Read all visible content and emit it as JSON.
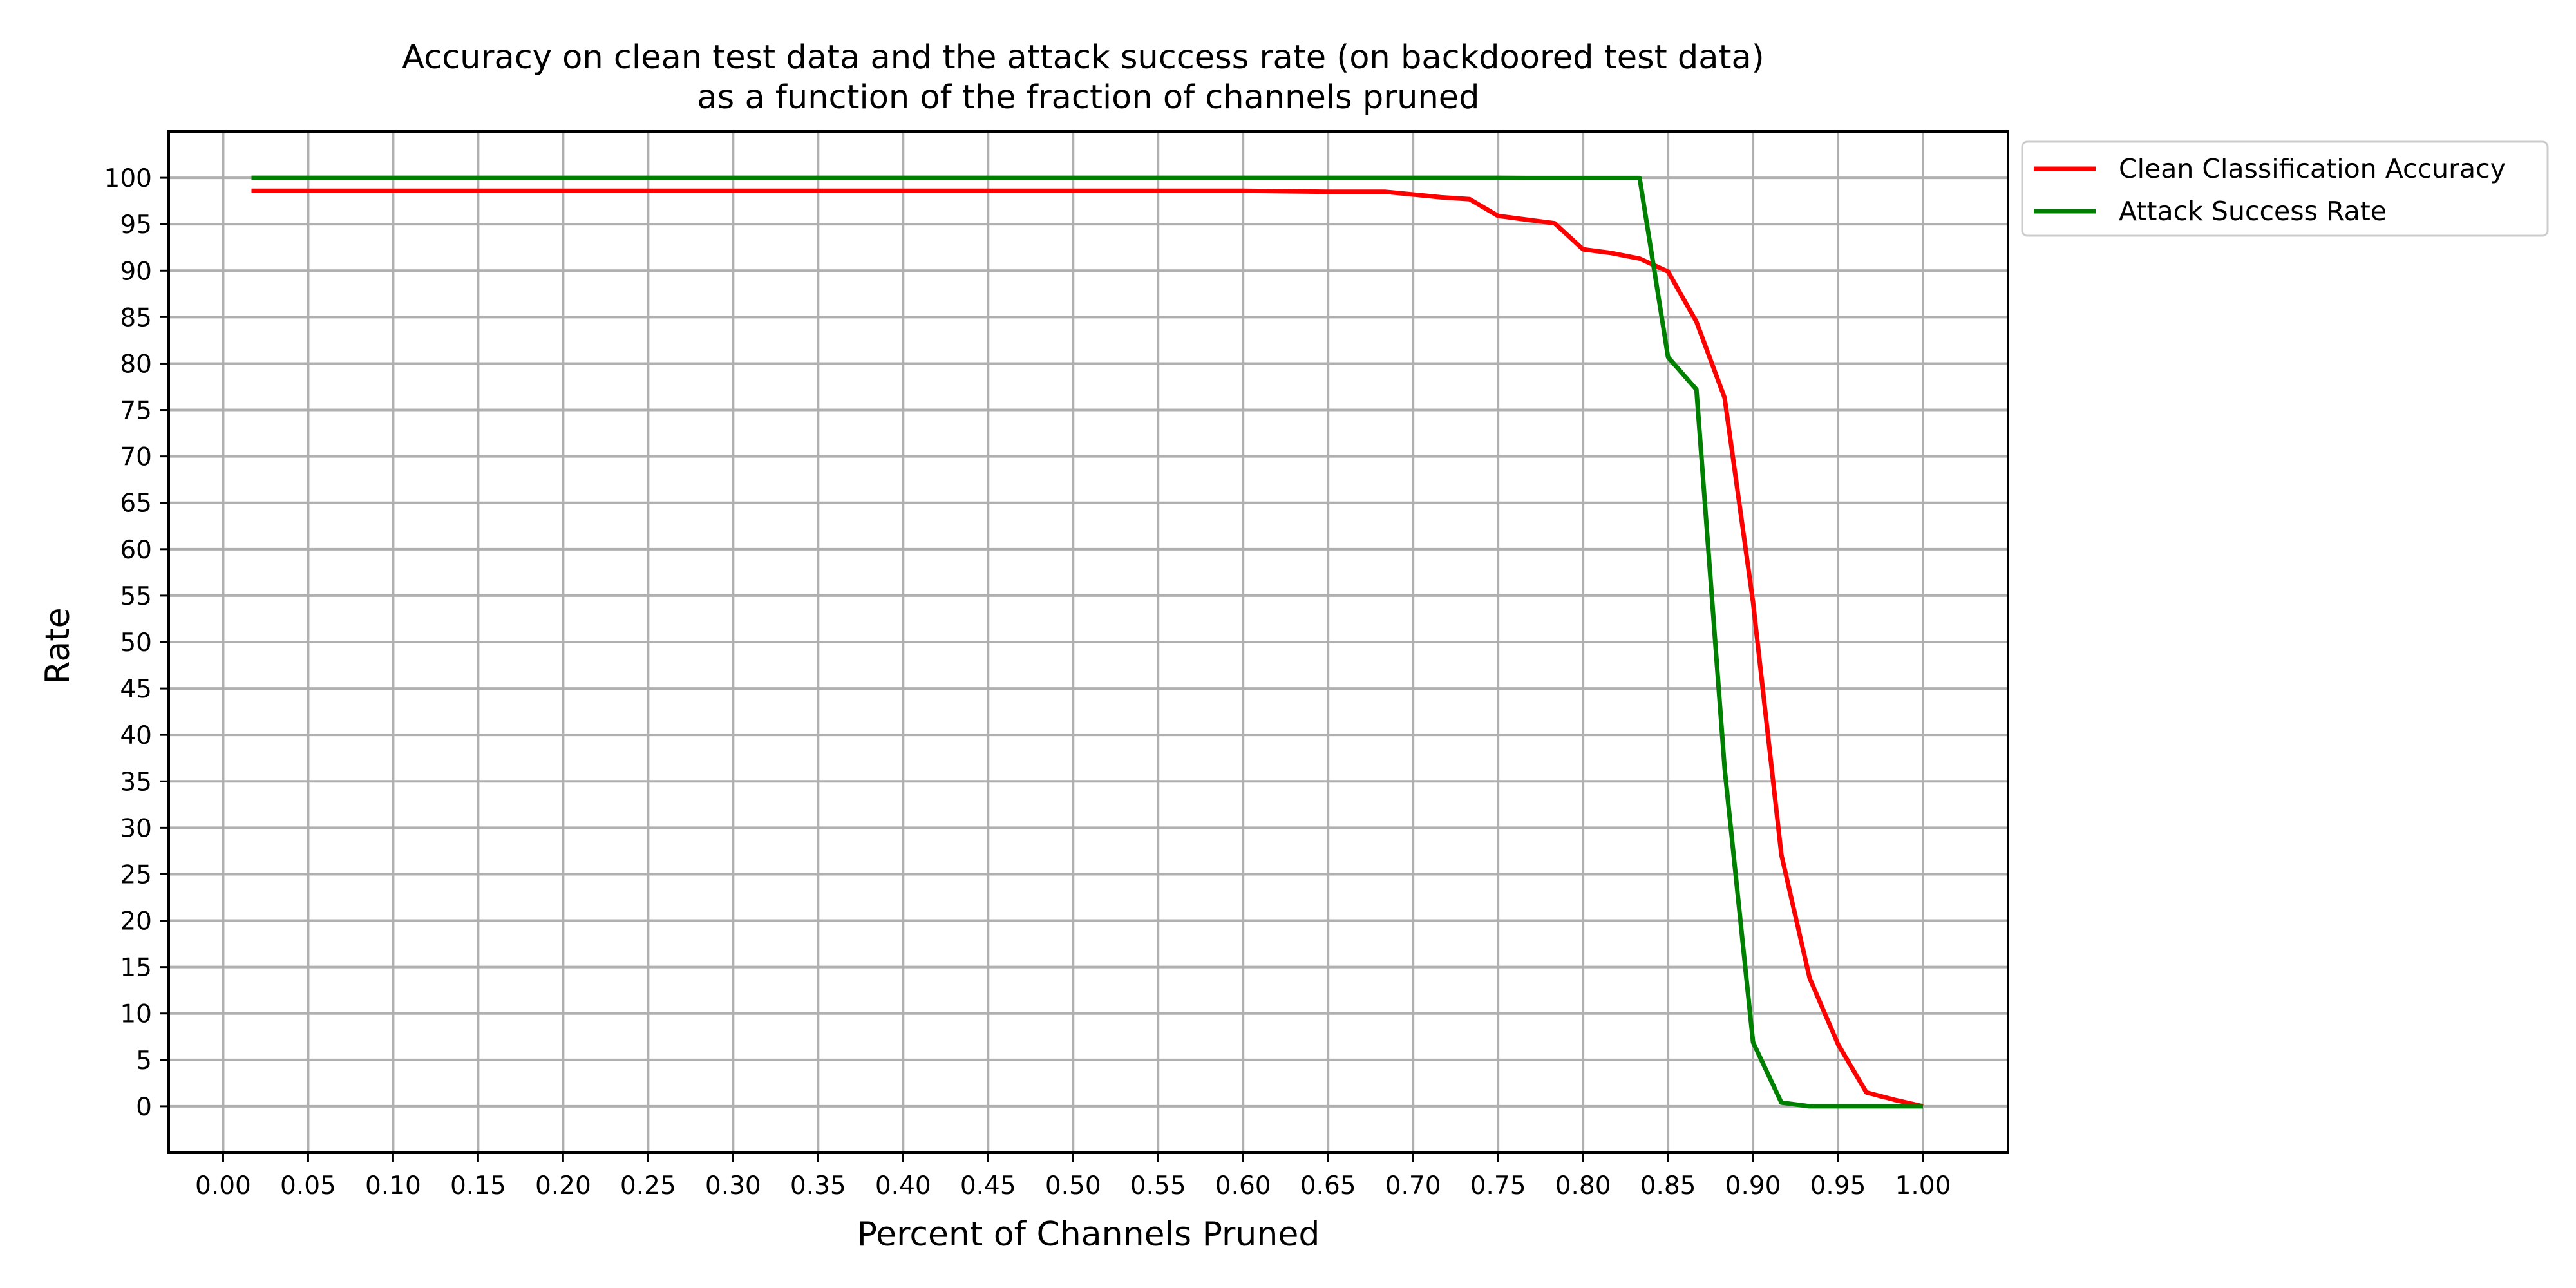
{
  "chart_data": {
    "type": "line",
    "title": "Accuracy on clean test data and the attack success rate (on backdoored test data)\nas a function of the fraction of channels pruned",
    "xlabel": "Percent of Channels Pruned",
    "ylabel": "Rate",
    "xlim": [
      -0.032,
      1.05
    ],
    "ylim": [
      -5,
      105
    ],
    "xticks": [
      "0.00",
      "0.05",
      "0.10",
      "0.15",
      "0.20",
      "0.25",
      "0.30",
      "0.35",
      "0.40",
      "0.45",
      "0.50",
      "0.55",
      "0.60",
      "0.65",
      "0.70",
      "0.75",
      "0.80",
      "0.85",
      "0.90",
      "0.95",
      "1.00"
    ],
    "yticks": [
      "0",
      "5",
      "10",
      "15",
      "20",
      "25",
      "30",
      "35",
      "40",
      "45",
      "50",
      "55",
      "60",
      "65",
      "70",
      "75",
      "80",
      "85",
      "90",
      "95",
      "100"
    ],
    "grid": true,
    "legend_position": "outside-upper-right",
    "series": [
      {
        "name": "Clean Classification Accuracy",
        "color": "#ff0000",
        "points": [
          [
            0.0167,
            98.6
          ],
          [
            0.1,
            98.6
          ],
          [
            0.2,
            98.6
          ],
          [
            0.3,
            98.6
          ],
          [
            0.4,
            98.6
          ],
          [
            0.5,
            98.6
          ],
          [
            0.6,
            98.6
          ],
          [
            0.65,
            98.5
          ],
          [
            0.6833,
            98.5
          ],
          [
            0.7,
            98.2
          ],
          [
            0.7167,
            97.9
          ],
          [
            0.7333,
            97.7
          ],
          [
            0.75,
            95.9
          ],
          [
            0.7667,
            95.5
          ],
          [
            0.7833,
            95.1
          ],
          [
            0.8,
            92.3
          ],
          [
            0.8167,
            91.9
          ],
          [
            0.8333,
            91.3
          ],
          [
            0.85,
            89.9
          ],
          [
            0.8667,
            84.5
          ],
          [
            0.8833,
            76.3
          ],
          [
            0.9,
            54.3
          ],
          [
            0.9167,
            27.1
          ],
          [
            0.9333,
            13.8
          ],
          [
            0.95,
            6.7
          ],
          [
            0.9667,
            1.5
          ],
          [
            0.9833,
            0.7
          ],
          [
            1.0,
            0.0
          ]
        ]
      },
      {
        "name": "Attack Success Rate",
        "color": "#008000",
        "points": [
          [
            0.0167,
            100.0
          ],
          [
            0.1,
            100.0
          ],
          [
            0.2,
            100.0
          ],
          [
            0.3,
            100.0
          ],
          [
            0.4,
            100.0
          ],
          [
            0.5,
            100.0
          ],
          [
            0.6,
            100.0
          ],
          [
            0.7,
            100.0
          ],
          [
            0.75,
            100.0
          ],
          [
            0.7667,
            99.98
          ],
          [
            0.8,
            99.98
          ],
          [
            0.8333,
            99.98
          ],
          [
            0.85,
            80.7
          ],
          [
            0.8667,
            77.2
          ],
          [
            0.8833,
            36.4
          ],
          [
            0.9,
            6.9
          ],
          [
            0.9167,
            0.4
          ],
          [
            0.9333,
            0.0
          ],
          [
            0.95,
            0.0
          ],
          [
            0.9667,
            0.0
          ],
          [
            0.9833,
            0.0
          ],
          [
            1.0,
            0.0
          ]
        ]
      }
    ]
  }
}
